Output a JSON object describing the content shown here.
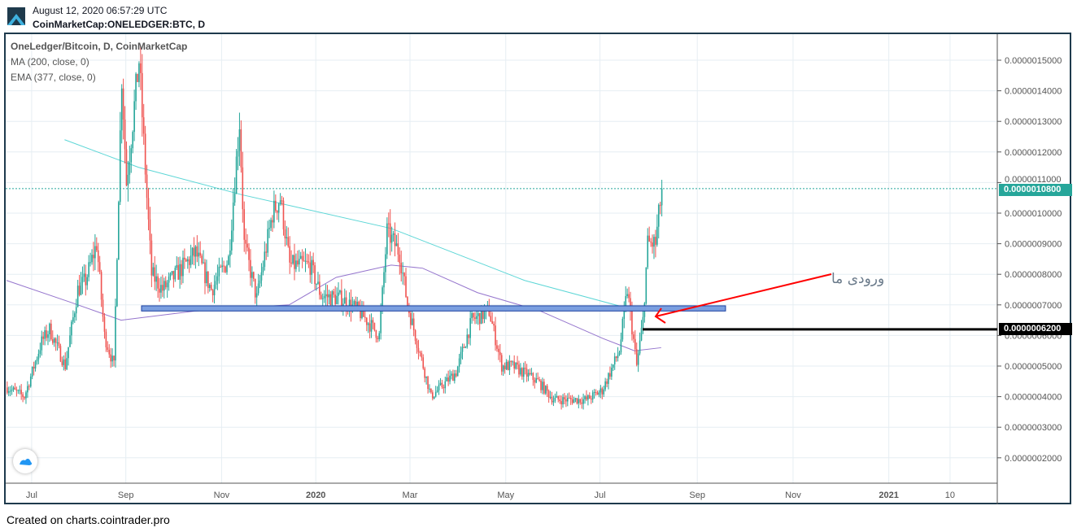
{
  "header": {
    "timestamp": "August 12, 2020 06:57:29 UTC",
    "symbol": "CoinMarketCap:ONELEDGER:BTC, D"
  },
  "legend": {
    "title": "OneLedger/Bitcoin, D, CoinMarketCap",
    "ma": "MA (200, close, 0)",
    "ema": "EMA (377, close, 0)"
  },
  "annotation": {
    "text": "ورودی ما"
  },
  "footer": "Created on charts.cointrader.pro",
  "colors": {
    "up": "#26a69a",
    "down": "#ef5350",
    "ma": "#9575cd",
    "ema": "#5cd6d6",
    "zone": "#7b9fe0",
    "arrow": "#ff0000"
  },
  "chart_data": {
    "type": "candlestick",
    "title": "OneLedger/Bitcoin, D, CoinMarketCap",
    "y_unit": "1e-7 BTC",
    "ylim": [
      1.2,
      15.9
    ],
    "yticks": [
      "0.0000015000",
      "0.0000014000",
      "0.0000013000",
      "0.0000012000",
      "0.0000011000",
      "0.0000010000",
      "0.0000009000",
      "0.0000008000",
      "0.0000007000",
      "0.0000006000",
      "0.0000005000",
      "0.0000004000",
      "0.0000003000",
      "0.0000002000"
    ],
    "ytick_values": [
      15,
      14,
      13,
      12,
      11,
      10,
      9,
      8,
      7,
      6,
      5,
      4,
      3,
      2
    ],
    "xticks": [
      "Jul",
      "Sep",
      "Nov",
      "2020",
      "Mar",
      "May",
      "Jul",
      "Sep",
      "Nov",
      "2021",
      "10"
    ],
    "xtick_days": [
      16,
      76,
      137,
      197,
      257,
      318,
      378,
      440,
      501,
      562,
      601
    ],
    "xlim_days": [
      0,
      630
    ],
    "close_keypoints": [
      [
        0,
        4.3
      ],
      [
        11,
        4.0
      ],
      [
        22,
        5.8
      ],
      [
        27,
        6.2
      ],
      [
        37,
        5.0
      ],
      [
        45,
        7.5
      ],
      [
        50,
        7.8
      ],
      [
        57,
        9.0
      ],
      [
        62,
        6.0
      ],
      [
        68,
        5.0
      ],
      [
        73,
        14.5
      ],
      [
        76,
        11.0
      ],
      [
        84,
        15.0
      ],
      [
        89,
        10.5
      ],
      [
        92,
        8.0
      ],
      [
        99,
        7.5
      ],
      [
        120,
        8.7
      ],
      [
        130,
        7.5
      ],
      [
        141,
        8.5
      ],
      [
        148,
        13.0
      ],
      [
        151,
        9.0
      ],
      [
        159,
        7.2
      ],
      [
        169,
        10.0
      ],
      [
        174,
        10.5
      ],
      [
        180,
        8.3
      ],
      [
        193,
        8.3
      ],
      [
        200,
        7.3
      ],
      [
        213,
        7.2
      ],
      [
        224,
        6.8
      ],
      [
        237,
        6.0
      ],
      [
        242,
        9.4
      ],
      [
        250,
        8.7
      ],
      [
        255,
        7.0
      ],
      [
        265,
        5.0
      ],
      [
        270,
        4.0
      ],
      [
        286,
        4.8
      ],
      [
        296,
        6.5
      ],
      [
        307,
        6.8
      ],
      [
        315,
        5.0
      ],
      [
        322,
        5.0
      ],
      [
        338,
        4.5
      ],
      [
        348,
        3.9
      ],
      [
        369,
        3.9
      ],
      [
        379,
        4.2
      ],
      [
        390,
        5.5
      ],
      [
        395,
        7.5
      ],
      [
        401,
        5.0
      ],
      [
        405,
        6.5
      ],
      [
        408,
        9.0
      ],
      [
        413,
        9.0
      ],
      [
        417,
        10.8
      ]
    ],
    "ma200": [
      [
        0,
        7.8
      ],
      [
        40,
        7.1
      ],
      [
        73,
        6.5
      ],
      [
        120,
        6.8
      ],
      [
        180,
        7.0
      ],
      [
        210,
        7.9
      ],
      [
        245,
        8.3
      ],
      [
        265,
        8.2
      ],
      [
        300,
        7.4
      ],
      [
        340,
        6.8
      ],
      [
        380,
        5.9
      ],
      [
        400,
        5.5
      ],
      [
        417,
        5.6
      ]
    ],
    "ema377": [
      [
        37,
        12.4
      ],
      [
        84,
        11.5
      ],
      [
        150,
        10.6
      ],
      [
        245,
        9.5
      ],
      [
        330,
        7.8
      ],
      [
        395,
        6.9
      ],
      [
        410,
        6.95
      ]
    ],
    "last_price": {
      "label": "0.0000010800",
      "value": 10.8
    },
    "level": {
      "label": "0.0000006200",
      "value": 6.2
    },
    "zone": {
      "from_day": 86,
      "to_day": 458,
      "low": 6.8,
      "high": 6.97
    }
  }
}
